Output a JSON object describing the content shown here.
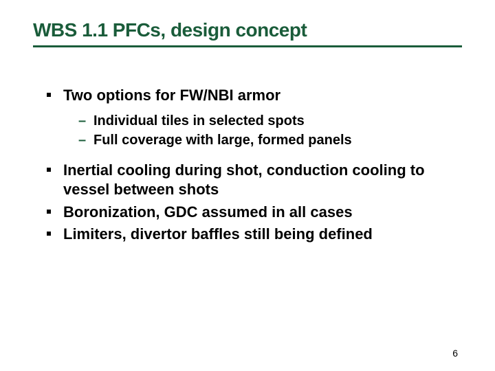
{
  "slide": {
    "title": "WBS 1.1 PFCs, design concept",
    "title_color": "#1a5c3a",
    "title_fontsize": 28,
    "underline_color": "#1a5c3a",
    "background_color": "#ffffff",
    "bullets": [
      {
        "text": "Two options for FW/NBI armor",
        "sub": [
          "Individual tiles in selected spots",
          "Full coverage with large, formed panels"
        ]
      },
      {
        "text": "Inertial cooling during shot, conduction cooling to vessel between shots",
        "sub": []
      },
      {
        "text": "Boronization, GDC assumed in all cases",
        "sub": []
      },
      {
        "text": "Limiters, divertor baffles still being defined",
        "sub": []
      }
    ],
    "bullet_fontsize": 22,
    "sub_bullet_fontsize": 20,
    "bullet_marker_color": "#000000",
    "sub_marker_color": "#1a5c3a",
    "page_number": "6"
  }
}
